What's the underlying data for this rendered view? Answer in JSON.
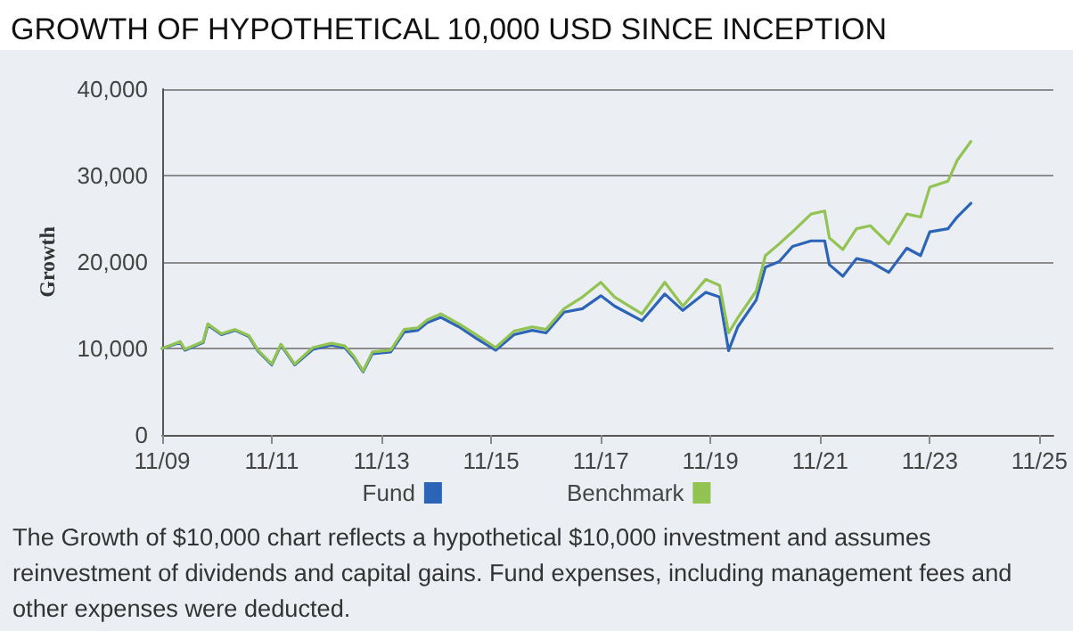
{
  "chart_data": {
    "type": "line",
    "title": "GROWTH OF HYPOTHETICAL 10,000 USD SINCE INCEPTION",
    "ylabel": "Growth",
    "x": [
      "2009-11",
      "2010-03",
      "2010-04",
      "2010-08",
      "2010-09",
      "2010-12",
      "2011-03",
      "2011-06",
      "2011-08",
      "2011-11",
      "2012-01",
      "2012-04",
      "2012-08",
      "2012-12",
      "2013-03",
      "2013-05",
      "2013-07",
      "2013-09",
      "2014-01",
      "2014-04",
      "2014-07",
      "2014-09",
      "2014-12",
      "2015-04",
      "2015-08",
      "2015-12",
      "2016-04",
      "2016-08",
      "2016-11",
      "2017-03",
      "2017-07",
      "2017-11",
      "2018-02",
      "2018-08",
      "2019-01",
      "2019-05",
      "2019-10",
      "2020-01",
      "2020-03",
      "2020-05",
      "2020-09",
      "2020-11",
      "2021-02",
      "2021-05",
      "2021-09",
      "2021-12",
      "2022-01",
      "2022-04",
      "2022-07",
      "2022-10",
      "2023-02",
      "2023-06",
      "2023-09",
      "2023-11",
      "2024-03",
      "2024-05",
      "2024-08"
    ],
    "series": [
      {
        "name": "Fund",
        "color": "#2c64b8",
        "values": [
          10000,
          10700,
          9800,
          10700,
          12700,
          11600,
          12100,
          11400,
          9700,
          8100,
          10400,
          8100,
          9900,
          10400,
          10100,
          8900,
          7300,
          9400,
          9600,
          11900,
          12100,
          13000,
          13600,
          12500,
          11100,
          9800,
          11600,
          12100,
          11800,
          14200,
          14600,
          16100,
          14900,
          13200,
          16300,
          14400,
          16500,
          15950,
          9750,
          12500,
          15600,
          19400,
          20050,
          21800,
          22450,
          22450,
          19700,
          18350,
          20400,
          20050,
          18800,
          21600,
          20750,
          23500,
          23850,
          25200,
          26800
        ]
      },
      {
        "name": "Benchmark",
        "color": "#92c353",
        "values": [
          10000,
          10800,
          9900,
          10800,
          12850,
          11700,
          12200,
          11500,
          9800,
          8200,
          10500,
          8200,
          10100,
          10600,
          10300,
          9100,
          7400,
          9600,
          9800,
          12200,
          12400,
          13300,
          14000,
          12850,
          11500,
          10100,
          12000,
          12500,
          12200,
          14600,
          15950,
          17650,
          15950,
          14000,
          17650,
          14900,
          18000,
          17300,
          11800,
          13550,
          16650,
          20750,
          22100,
          23500,
          25550,
          25900,
          22800,
          21450,
          23850,
          24200,
          22100,
          25550,
          25200,
          28650,
          29350,
          31750,
          33950
        ]
      }
    ],
    "xlim": [
      "2009-11",
      "2026-02"
    ],
    "xticks": [
      {
        "value": "2009-11",
        "label": "11/09"
      },
      {
        "value": "2011-11",
        "label": "11/11"
      },
      {
        "value": "2013-11",
        "label": "11/13"
      },
      {
        "value": "2015-11",
        "label": "11/15"
      },
      {
        "value": "2017-11",
        "label": "11/17"
      },
      {
        "value": "2019-11",
        "label": "11/19"
      },
      {
        "value": "2021-11",
        "label": "11/21"
      },
      {
        "value": "2023-11",
        "label": "11/23"
      },
      {
        "value": "2025-11",
        "label": "11/25"
      }
    ],
    "ylim": [
      0,
      40000
    ],
    "yticks": [
      0,
      {
        "value": 10000,
        "label": "10,000"
      },
      {
        "value": 20000,
        "label": "20,000"
      },
      {
        "value": 30000,
        "label": "30,000"
      },
      {
        "value": 40000,
        "label": "40,000"
      }
    ],
    "grid": "y",
    "legend": "bottom",
    "line_style": "solid",
    "annotations": [
      "The Growth of $10,000 chart reflects a hypothetical $10,000 investment and assumes reinvestment of dividends and capital gains. Fund expenses, including management fees and other expenses were deducted."
    ]
  }
}
